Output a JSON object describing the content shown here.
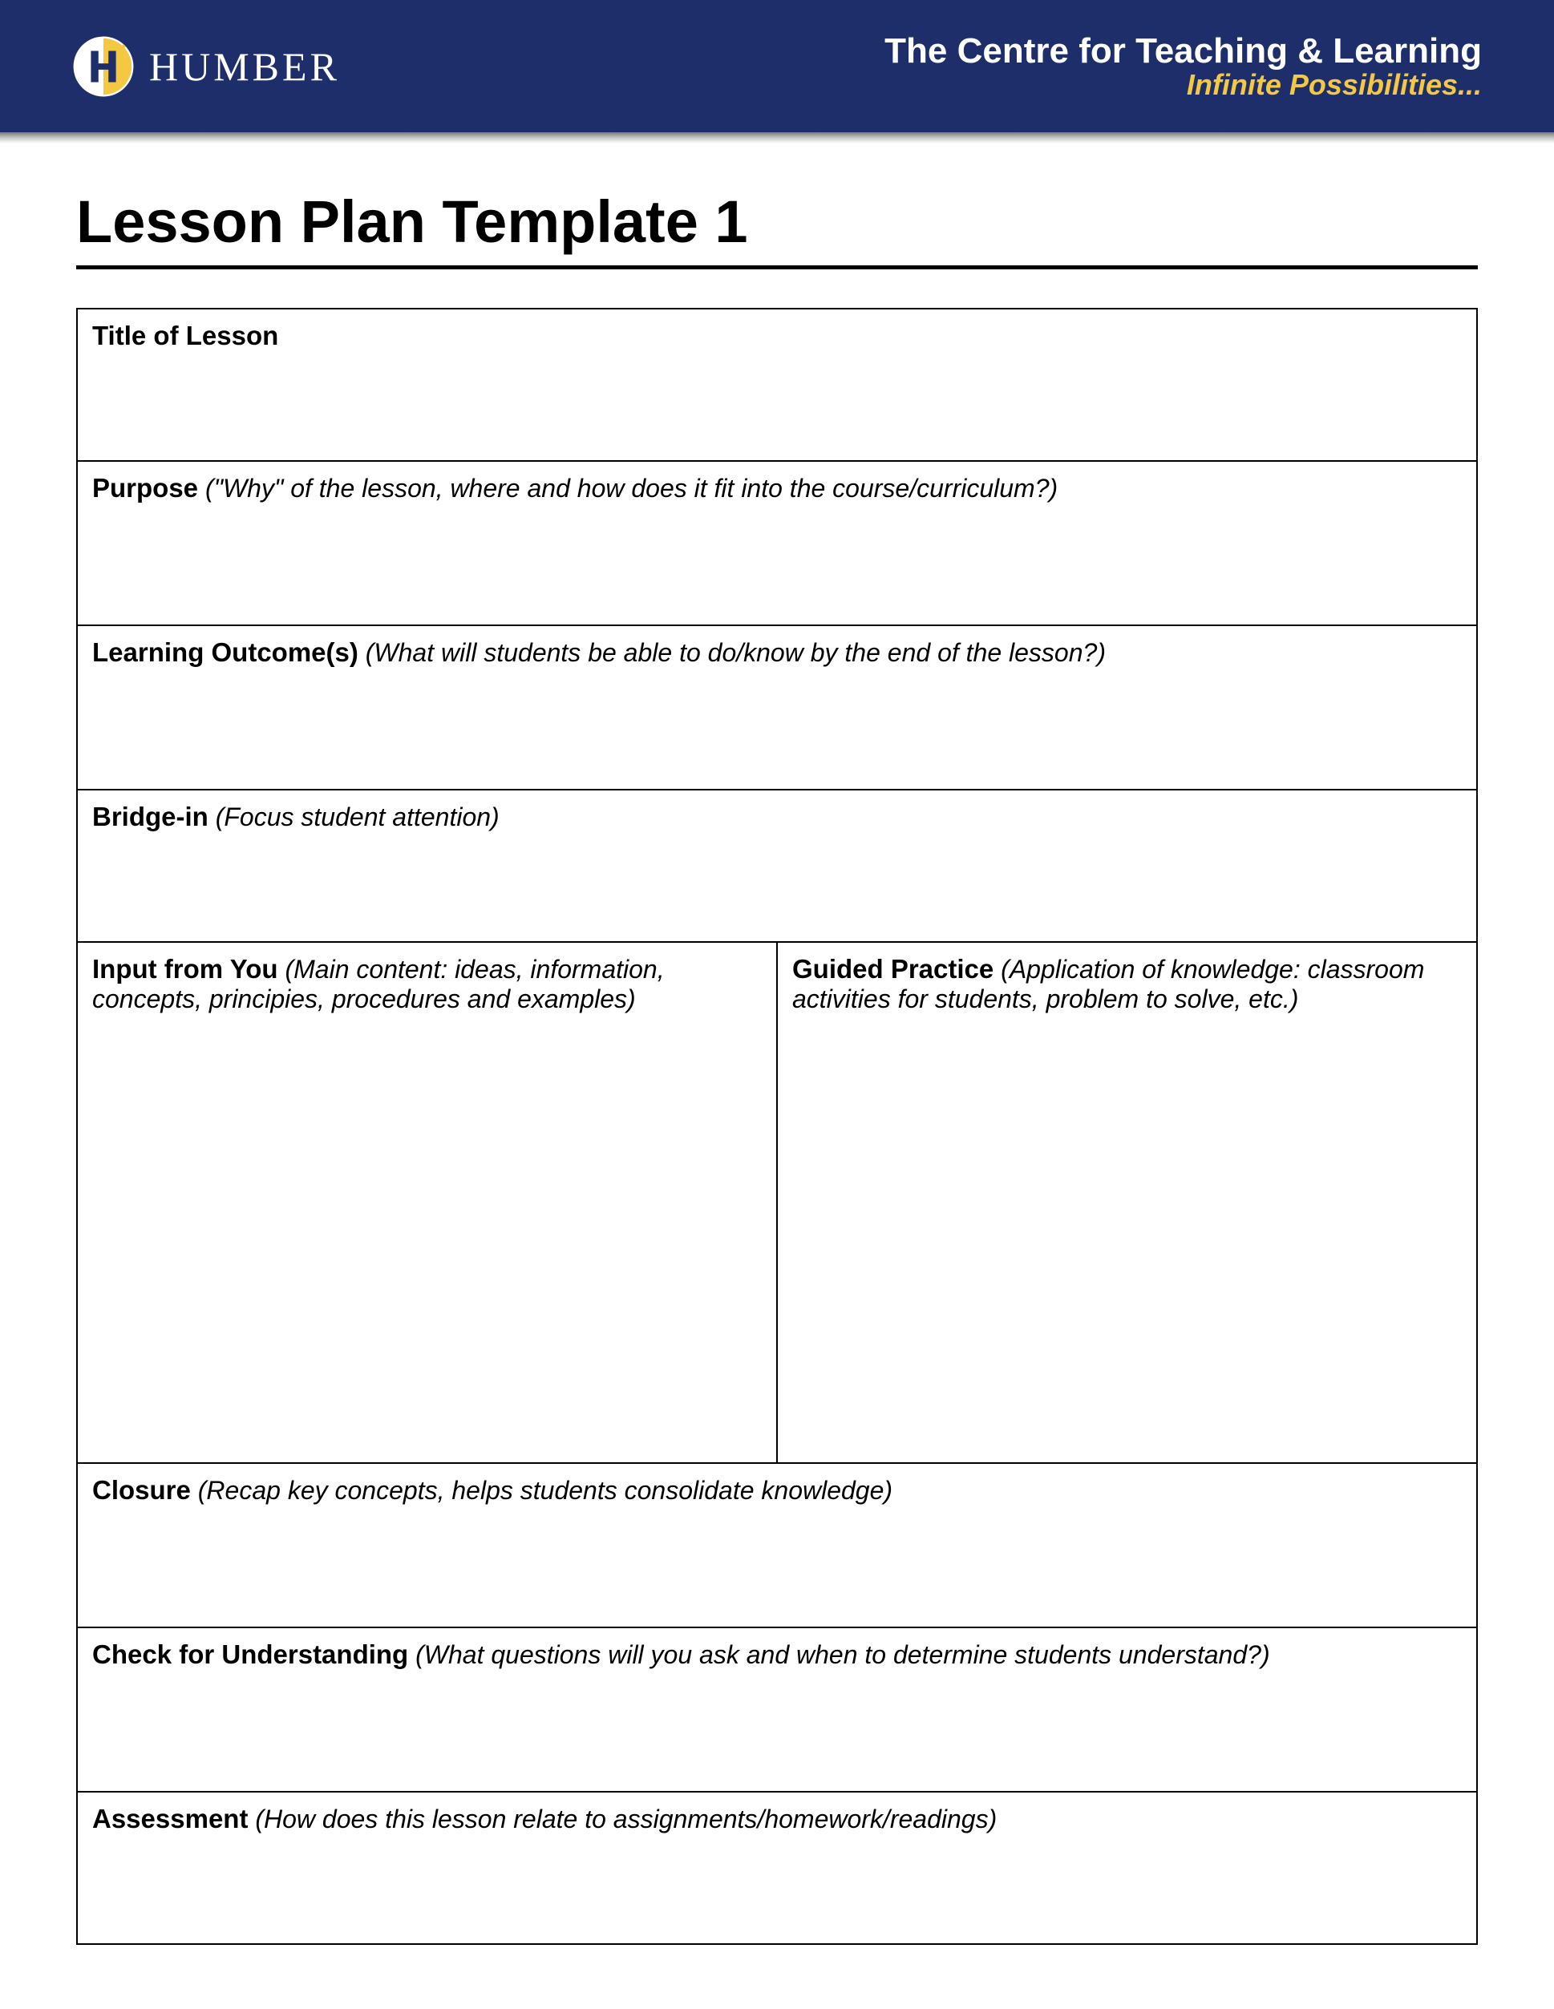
{
  "header": {
    "logo_text": "HUMBER",
    "title": "The Centre for Teaching & Learning",
    "subtitle": "Infinite Possibilities...",
    "bg_color": "#1e2e6b",
    "subtitle_color": "#f5c842",
    "title_color": "#ffffff"
  },
  "main": {
    "title": "Lesson Plan Template 1",
    "rows": [
      {
        "id": "title",
        "label": "Title of Lesson",
        "hint": "",
        "height_class": "row-title",
        "split": false
      },
      {
        "id": "purpose",
        "label": "Purpose",
        "hint": " (\"Why\" of the lesson, where and how does it fit into the course/curriculum?)",
        "height_class": "row-purpose",
        "split": false
      },
      {
        "id": "outcomes",
        "label": "Learning Outcome(s)",
        "hint": " (What will students be able to do/know by the end of the lesson?)",
        "height_class": "row-outcomes",
        "split": false
      },
      {
        "id": "bridge",
        "label": "Bridge-in",
        "hint": " (Focus student attention)",
        "height_class": "row-bridge",
        "split": false
      },
      {
        "id": "input-practice",
        "height_class": "row-input-practice",
        "split": true,
        "left": {
          "label": "Input from You",
          "hint": " (Main content: ideas, information, concepts, principies, procedures and examples)"
        },
        "right": {
          "label": "Guided Practice",
          "hint": " (Application of knowledge: classroom activities for students, problem to solve, etc.)"
        }
      },
      {
        "id": "closure",
        "label": "Closure",
        "hint": " (Recap key concepts, helps students consolidate knowledge)",
        "height_class": "row-closure",
        "split": false
      },
      {
        "id": "check",
        "label": "Check for Understanding",
        "hint": " (What questions will you ask and when to determine students understand?)",
        "height_class": "row-check",
        "split": false
      },
      {
        "id": "assessment",
        "label": "Assessment",
        "hint": " (How does this lesson relate to assignments/homework/readings)",
        "height_class": "row-assessment",
        "split": false
      }
    ]
  },
  "styling": {
    "page_bg": "#ffffff",
    "title_fontsize": 74,
    "label_fontsize": 33,
    "hint_fontsize": 32,
    "border_color": "#000000",
    "border_width": 2
  }
}
